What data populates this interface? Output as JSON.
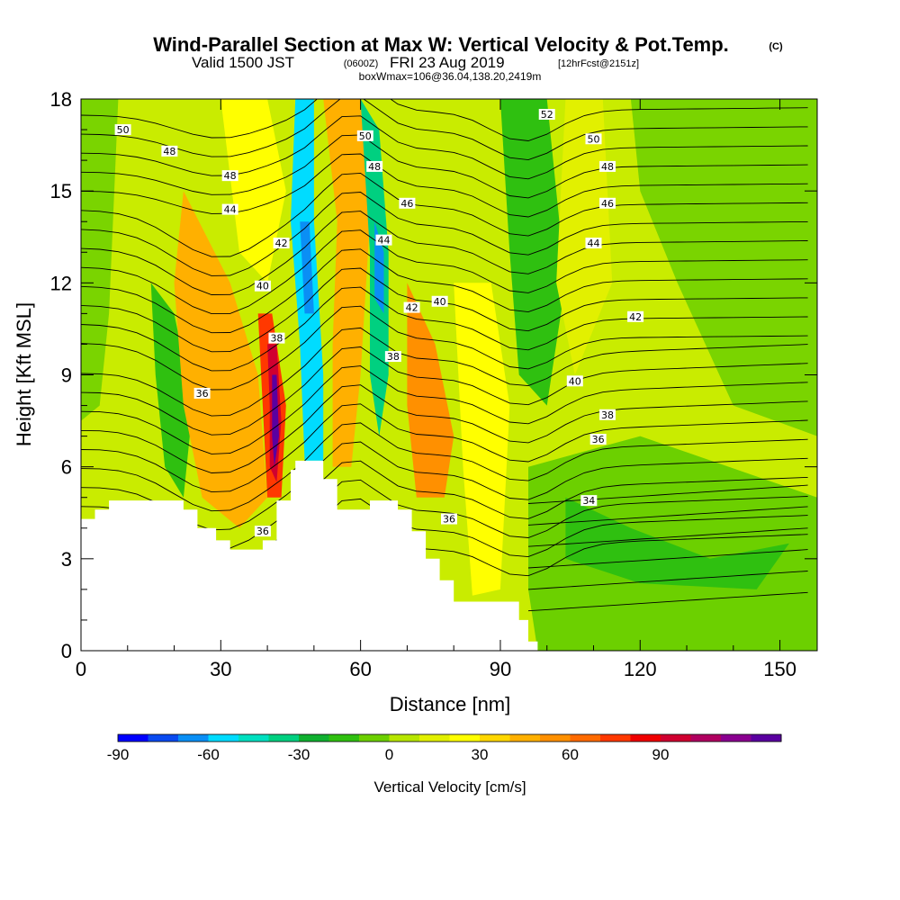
{
  "title": {
    "main": "Wind-Parallel Section at Max W: Vertical Velocity & Pot.Temp.",
    "units_tag": "(C)",
    "valid_prefix": "Valid 1500 JST",
    "valid_z": "(0600Z)",
    "valid_date": "FRI 23 Aug 2019",
    "forecast": "[12hrFcst@2151z]",
    "box": "boxWmax=106@36.04,138.20,2419m"
  },
  "axes": {
    "xlabel": "Distance [nm]",
    "ylabel": "Height [Kft MSL]",
    "x_ticks": [
      "0",
      "30",
      "60",
      "90",
      "120",
      "150"
    ],
    "y_ticks": [
      "0",
      "3",
      "6",
      "9",
      "12",
      "15",
      "18"
    ]
  },
  "colorbar": {
    "title": "Vertical Velocity [cm/s]",
    "tick_labels": [
      "-90",
      "-60",
      "-30",
      "0",
      "30",
      "60",
      "90"
    ],
    "colors": [
      "#0000ff",
      "#0a4af0",
      "#0a8ff5",
      "#00dcff",
      "#00e0c0",
      "#00d080",
      "#10b030",
      "#2fc010",
      "#6cd000",
      "#b7e600",
      "#e2f000",
      "#ffff00",
      "#ffd700",
      "#ffb000",
      "#ff9000",
      "#ff6a00",
      "#ff3800",
      "#f00000",
      "#d00030",
      "#b00060",
      "#8a0090",
      "#5a00a0"
    ]
  },
  "chart_data": {
    "type": "contour cross-section",
    "x_range_nm": [
      0,
      158
    ],
    "y_range_kft": [
      0,
      18
    ],
    "fill_variable": "Vertical Velocity [cm/s]",
    "contour_variable": "Potential Temperature (C)",
    "contour_labels": [
      {
        "value": "50",
        "x": 9,
        "y": 17.0
      },
      {
        "value": "48",
        "x": 19,
        "y": 16.3
      },
      {
        "value": "48",
        "x": 32,
        "y": 15.5
      },
      {
        "value": "44",
        "x": 32,
        "y": 14.4
      },
      {
        "value": "42",
        "x": 43,
        "y": 13.3
      },
      {
        "value": "40",
        "x": 39,
        "y": 11.9
      },
      {
        "value": "38",
        "x": 42,
        "y": 10.2
      },
      {
        "value": "36",
        "x": 26,
        "y": 8.4
      },
      {
        "value": "36",
        "x": 39,
        "y": 3.9
      },
      {
        "value": "50",
        "x": 61,
        "y": 16.8
      },
      {
        "value": "48",
        "x": 63,
        "y": 15.8
      },
      {
        "value": "46",
        "x": 70,
        "y": 14.6
      },
      {
        "value": "44",
        "x": 65,
        "y": 13.4
      },
      {
        "value": "42",
        "x": 71,
        "y": 11.2
      },
      {
        "value": "40",
        "x": 77,
        "y": 11.4
      },
      {
        "value": "38",
        "x": 67,
        "y": 9.6
      },
      {
        "value": "36",
        "x": 79,
        "y": 4.3
      },
      {
        "value": "52",
        "x": 100,
        "y": 17.5
      },
      {
        "value": "50",
        "x": 110,
        "y": 16.7
      },
      {
        "value": "48",
        "x": 113,
        "y": 15.8
      },
      {
        "value": "46",
        "x": 113,
        "y": 14.6
      },
      {
        "value": "44",
        "x": 110,
        "y": 13.3
      },
      {
        "value": "42",
        "x": 119,
        "y": 10.9
      },
      {
        "value": "40",
        "x": 106,
        "y": 8.8
      },
      {
        "value": "38",
        "x": 113,
        "y": 7.7
      },
      {
        "value": "36",
        "x": 111,
        "y": 6.9
      },
      {
        "value": "34",
        "x": 109,
        "y": 4.9
      }
    ],
    "velocity_features": [
      {
        "kind": "updraft max",
        "x": 42,
        "y": 7.5,
        "value": 106
      },
      {
        "kind": "downdraft",
        "x": 48,
        "y": 12.5,
        "value": -70
      },
      {
        "kind": "downdraft",
        "x": 64,
        "y": 12.0,
        "value": -65
      },
      {
        "kind": "updraft",
        "x": 55,
        "y": 12.5,
        "value": 50
      },
      {
        "kind": "updraft",
        "x": 75,
        "y": 8.0,
        "value": 45
      }
    ],
    "terrain_kft": [
      {
        "x": 0,
        "h": 4.3
      },
      {
        "x": 3,
        "h": 4.3
      },
      {
        "x": 3,
        "h": 4.6
      },
      {
        "x": 6,
        "h": 4.6
      },
      {
        "x": 6,
        "h": 4.9
      },
      {
        "x": 22,
        "h": 4.9
      },
      {
        "x": 22,
        "h": 4.6
      },
      {
        "x": 25,
        "h": 4.6
      },
      {
        "x": 25,
        "h": 4.0
      },
      {
        "x": 29,
        "h": 4.0
      },
      {
        "x": 29,
        "h": 3.6
      },
      {
        "x": 32,
        "h": 3.6
      },
      {
        "x": 32,
        "h": 3.3
      },
      {
        "x": 39,
        "h": 3.3
      },
      {
        "x": 39,
        "h": 3.6
      },
      {
        "x": 42,
        "h": 3.6
      },
      {
        "x": 42,
        "h": 4.9
      },
      {
        "x": 45,
        "h": 4.9
      },
      {
        "x": 45,
        "h": 5.9
      },
      {
        "x": 46,
        "h": 5.9
      },
      {
        "x": 46,
        "h": 6.2
      },
      {
        "x": 52,
        "h": 6.2
      },
      {
        "x": 52,
        "h": 5.6
      },
      {
        "x": 55,
        "h": 5.6
      },
      {
        "x": 55,
        "h": 4.6
      },
      {
        "x": 62,
        "h": 4.6
      },
      {
        "x": 62,
        "h": 4.9
      },
      {
        "x": 68,
        "h": 4.9
      },
      {
        "x": 68,
        "h": 4.6
      },
      {
        "x": 71,
        "h": 4.6
      },
      {
        "x": 71,
        "h": 3.9
      },
      {
        "x": 74,
        "h": 3.9
      },
      {
        "x": 74,
        "h": 3.0
      },
      {
        "x": 77,
        "h": 3.0
      },
      {
        "x": 77,
        "h": 2.3
      },
      {
        "x": 80,
        "h": 2.3
      },
      {
        "x": 80,
        "h": 1.6
      },
      {
        "x": 94,
        "h": 1.6
      },
      {
        "x": 94,
        "h": 1.0
      },
      {
        "x": 96,
        "h": 1.0
      },
      {
        "x": 96,
        "h": 0.3
      },
      {
        "x": 98,
        "h": 0.3
      },
      {
        "x": 98,
        "h": 0
      }
    ]
  }
}
